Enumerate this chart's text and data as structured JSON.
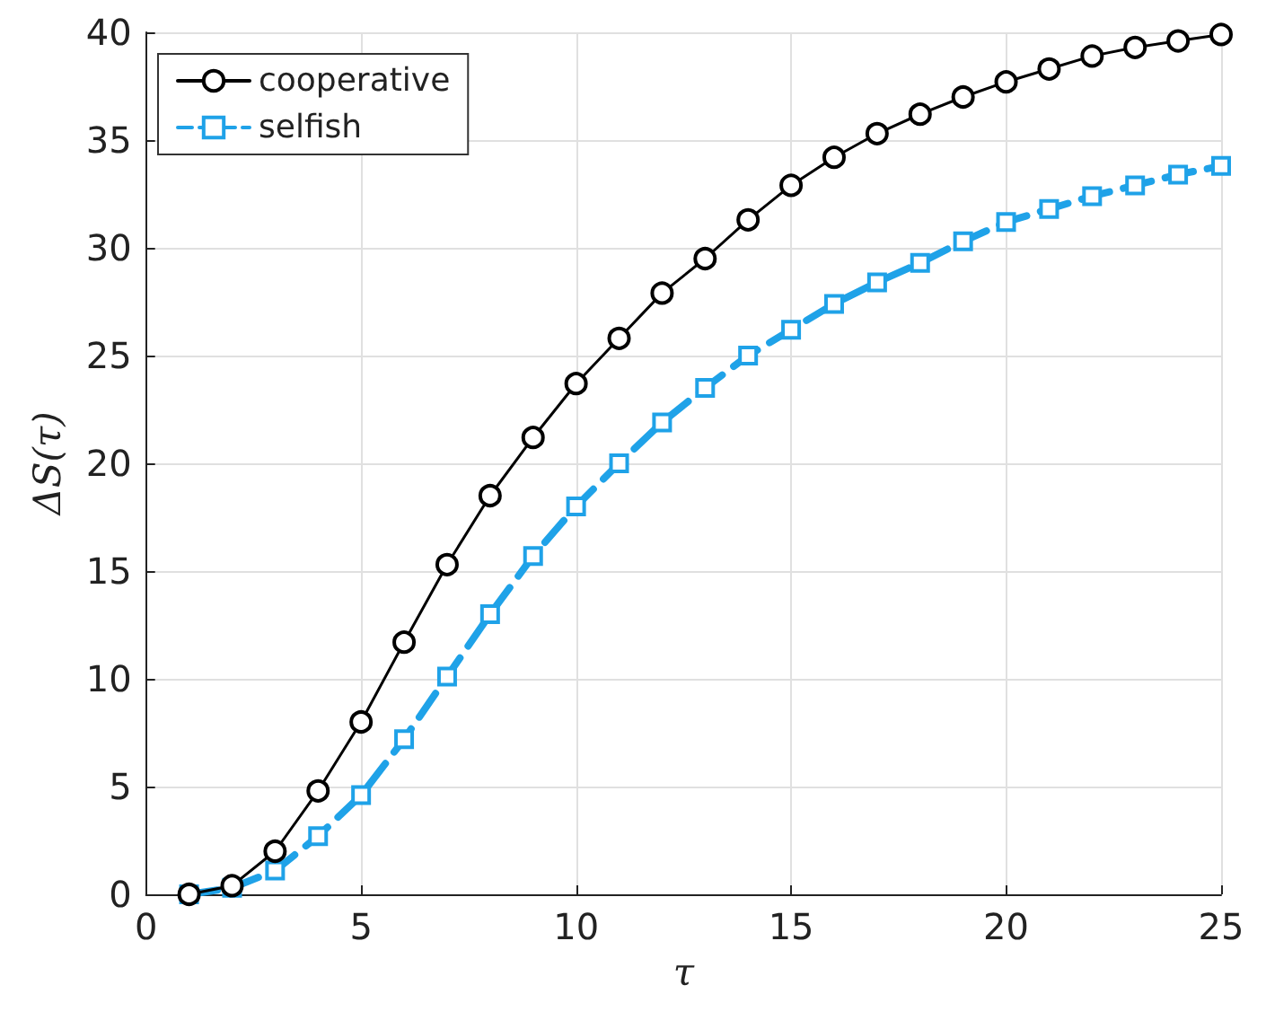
{
  "chart_data": {
    "type": "line",
    "xlabel": "τ",
    "ylabel": "ΔS(τ)",
    "x": [
      1,
      2,
      3,
      4,
      5,
      6,
      7,
      8,
      9,
      10,
      11,
      12,
      13,
      14,
      15,
      16,
      17,
      18,
      19,
      20,
      21,
      22,
      23,
      24,
      25
    ],
    "series": [
      {
        "name": "cooperative",
        "color": "#000000",
        "marker": "circle",
        "line_style": "solid",
        "values": [
          0,
          0.4,
          2.0,
          4.8,
          8.0,
          11.7,
          15.3,
          18.5,
          21.2,
          23.7,
          25.8,
          27.9,
          29.5,
          31.3,
          32.9,
          34.2,
          35.3,
          36.2,
          37.0,
          37.7,
          38.3,
          38.9,
          39.3,
          39.6,
          39.9
        ]
      },
      {
        "name": "selfish",
        "color": "#1fa2e8",
        "marker": "square",
        "line_style": "dashed",
        "values": [
          0,
          0.3,
          1.1,
          2.7,
          4.6,
          7.2,
          10.1,
          13.0,
          15.7,
          18.0,
          20.0,
          21.9,
          23.5,
          25.0,
          26.2,
          27.4,
          28.4,
          29.3,
          30.3,
          31.2,
          31.8,
          32.4,
          32.9,
          33.4,
          33.8
        ]
      }
    ],
    "xlim": [
      0,
      25
    ],
    "xticks": [
      0,
      5,
      10,
      15,
      20,
      25
    ],
    "ylim": [
      0,
      40
    ],
    "yticks": [
      0,
      5,
      10,
      15,
      20,
      25,
      30,
      35,
      40
    ],
    "grid": true,
    "legend": "top left"
  }
}
